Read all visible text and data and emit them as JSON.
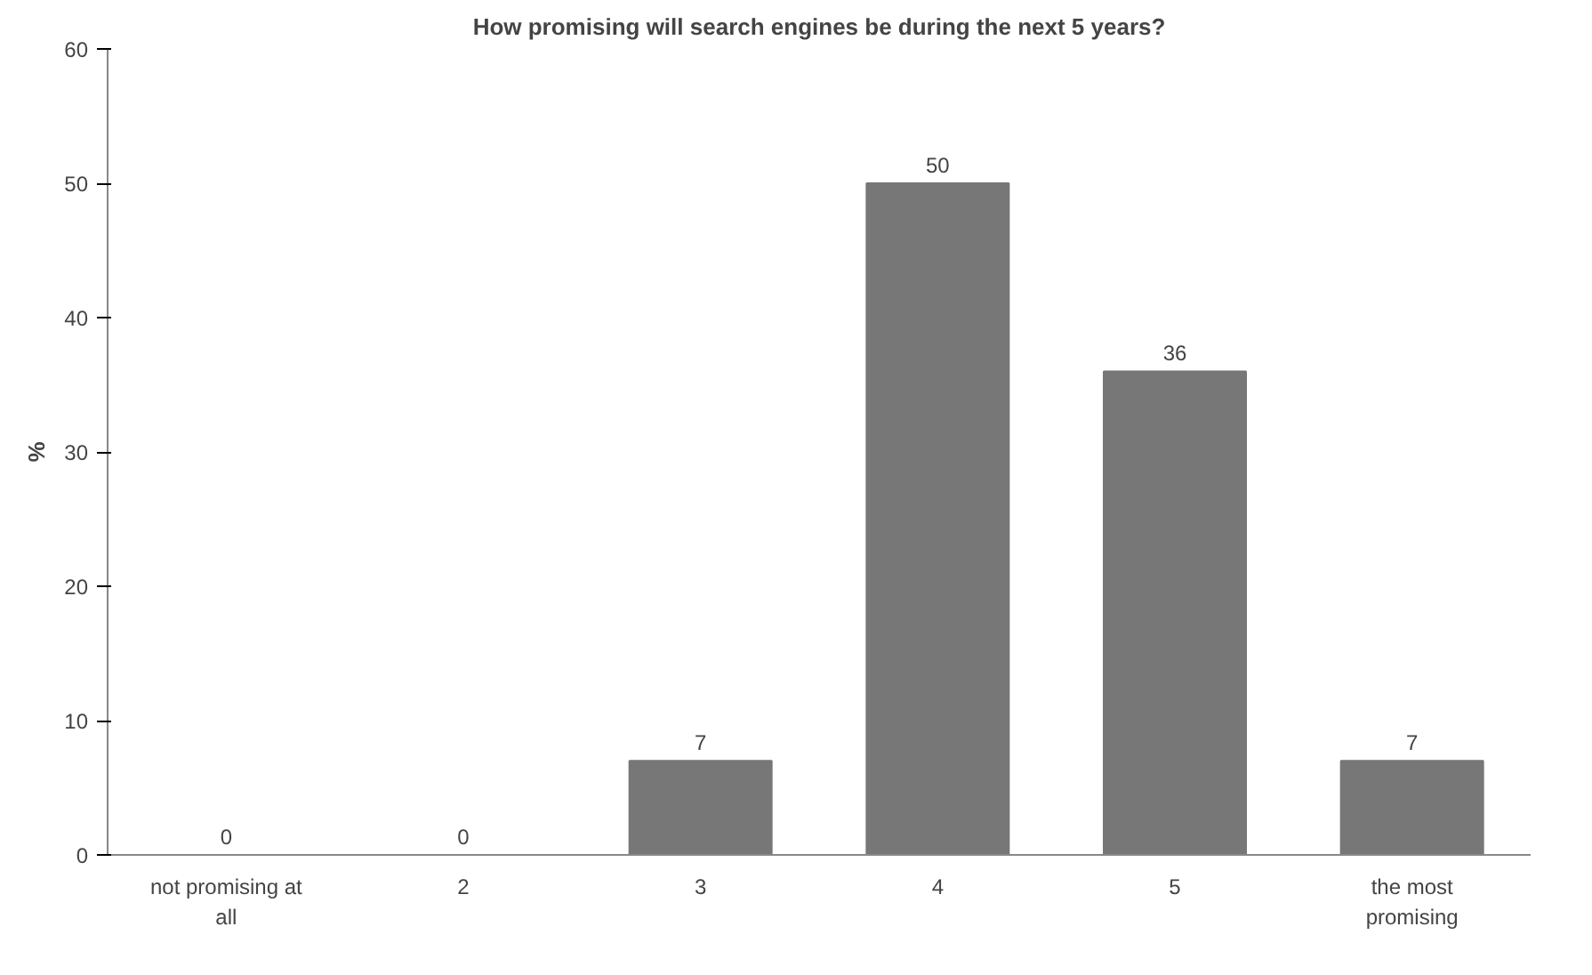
{
  "chart_data": {
    "type": "bar",
    "title": "How promising will search engines be during the next 5 years?",
    "ylabel": "%",
    "categories": [
      "not promising at all",
      "2",
      "3",
      "4",
      "5",
      "the most promising"
    ],
    "values": [
      0,
      0,
      7,
      50,
      36,
      7
    ],
    "color": "#777777",
    "ylim": [
      0,
      60
    ],
    "yticks": [
      0,
      10,
      20,
      30,
      40,
      50,
      60
    ],
    "data_labels": true,
    "grid": false
  }
}
